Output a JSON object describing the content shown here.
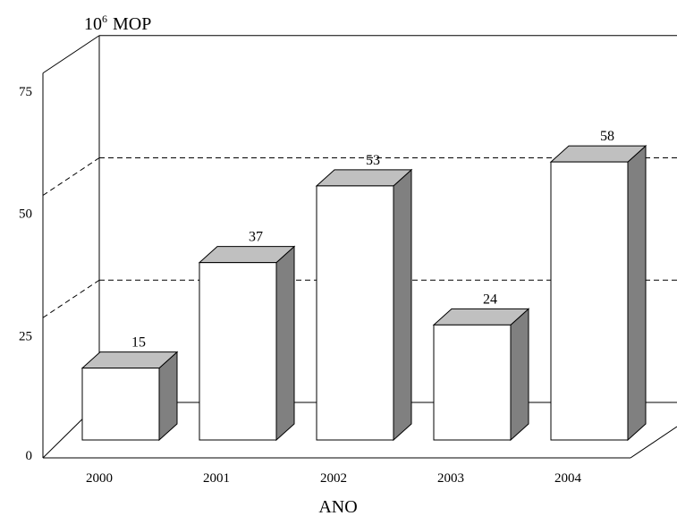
{
  "chart_data": {
    "type": "bar",
    "style": "3d",
    "categories": [
      "2000",
      "2001",
      "2002",
      "2003",
      "2004"
    ],
    "values": [
      15,
      37,
      53,
      24,
      58
    ],
    "data_labels": [
      "15",
      "37",
      "53",
      "24",
      "58"
    ],
    "ylabel_base": "10",
    "ylabel_exponent": "6",
    "ylabel_unit": "MOP",
    "xlabel": "ANO",
    "yticks": [
      "0",
      "25",
      "50",
      "75"
    ],
    "ylim": [
      0,
      75
    ],
    "grid": "dashed horizontal at 25 and 50",
    "colors": {
      "front": "#ffffff",
      "top": "#c0c0c0",
      "side": "#808080",
      "stroke": "#000000"
    }
  }
}
